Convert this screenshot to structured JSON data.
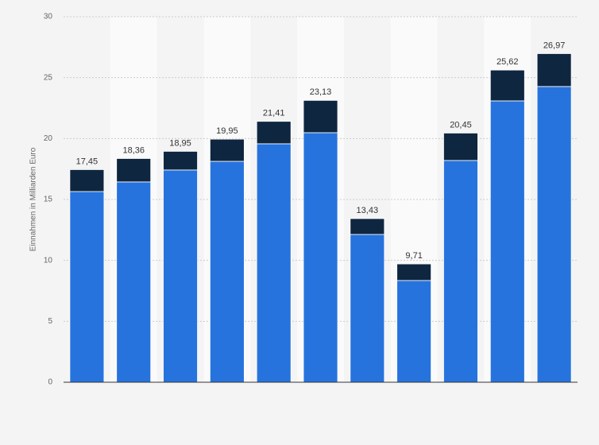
{
  "chart_data": {
    "type": "stacked_bar",
    "y_label": "Einnahmen in Milliarden Euro",
    "categories": [
      null,
      null,
      null,
      null,
      null,
      null,
      null,
      null,
      null,
      null,
      null
    ],
    "series": [
      {
        "color": "#2673dd",
        "values": [
          15.65,
          16.44,
          17.42,
          18.13,
          19.57,
          20.48,
          12.13,
          8.35,
          18.2,
          23.09,
          24.27
        ]
      },
      {
        "color": "#0f2640",
        "values": [
          1.8,
          1.92,
          1.53,
          1.82,
          1.84,
          2.65,
          1.3,
          1.36,
          2.25,
          2.53,
          2.7
        ]
      }
    ],
    "totals": [
      17.45,
      18.36,
      18.95,
      19.95,
      21.41,
      23.13,
      13.43,
      9.71,
      20.45,
      25.62,
      26.97
    ],
    "total_labels": [
      "17,45",
      "18,36",
      "18,95",
      "19,95",
      "21,41",
      "23,13",
      "13,43",
      "9,71",
      "20,45",
      "25,62",
      "26,97"
    ],
    "ylim": [
      0,
      30
    ],
    "yticks": [
      0,
      5,
      10,
      15,
      20,
      25,
      30
    ],
    "grid": true
  }
}
